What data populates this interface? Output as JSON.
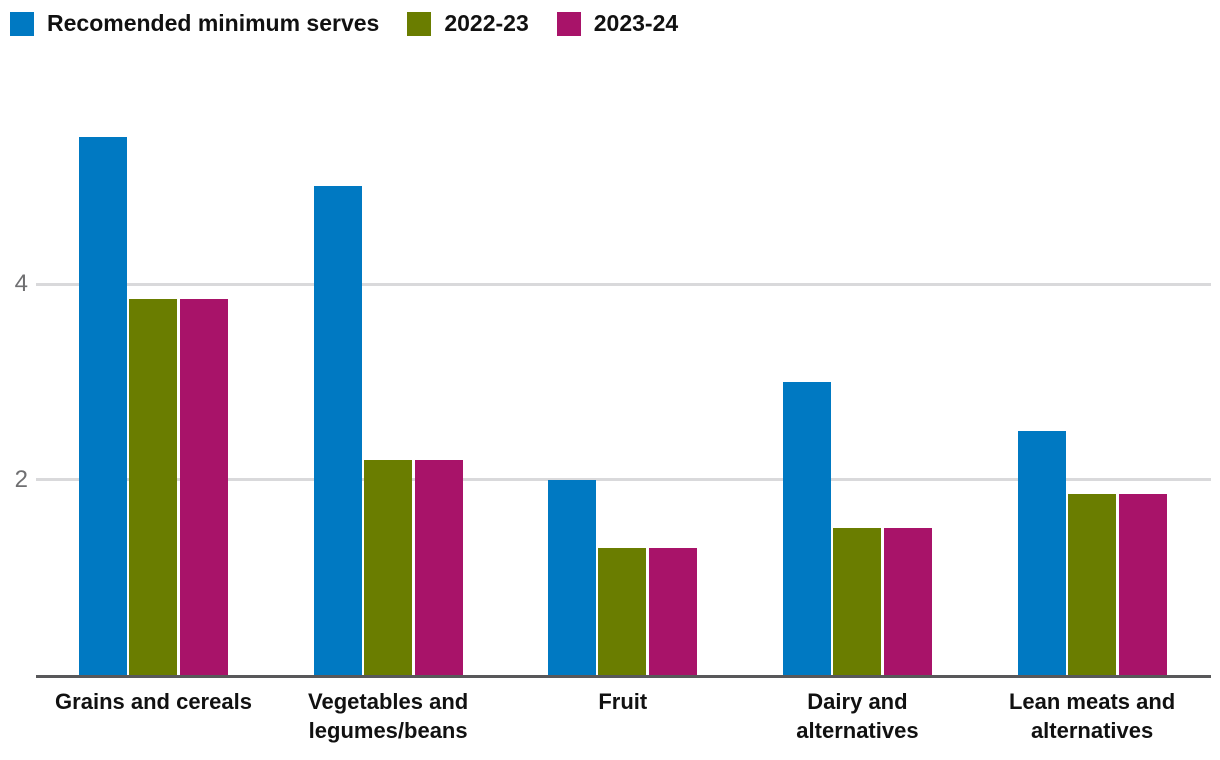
{
  "legend": {
    "items": [
      {
        "label": "Recomended minimum serves",
        "color": "#0079C2"
      },
      {
        "label": "2022-23",
        "color": "#6A7D00"
      },
      {
        "label": "2023-24",
        "color": "#A81369"
      }
    ]
  },
  "chart_data": {
    "type": "bar",
    "title": "",
    "xlabel": "",
    "ylabel": "",
    "categories": [
      "Grains and cereals",
      "Vegetables and legumes/beans",
      "Fruit",
      "Dairy and alternatives",
      "Lean meats and alternatives"
    ],
    "series": [
      {
        "name": "Recomended minimum serves",
        "color": "#0079C2",
        "values": [
          5.5,
          5.0,
          2.0,
          3.0,
          2.5
        ]
      },
      {
        "name": "2022-23",
        "color": "#6A7D00",
        "values": [
          3.85,
          2.2,
          1.3,
          1.5,
          1.85
        ]
      },
      {
        "name": "2023-24",
        "color": "#A81369",
        "values": [
          3.85,
          2.2,
          1.3,
          1.5,
          1.85
        ]
      }
    ],
    "yticks": [
      2,
      4
    ],
    "ylim": [
      0,
      6.2
    ],
    "grid": "horizontal-only",
    "legend_position": "top-left"
  },
  "colors": {
    "background": "#FFFFFF",
    "gridline": "#D9D9DB",
    "axis_line": "#58585A",
    "tick_label": "#6F6F71",
    "category_label": "#111111"
  }
}
